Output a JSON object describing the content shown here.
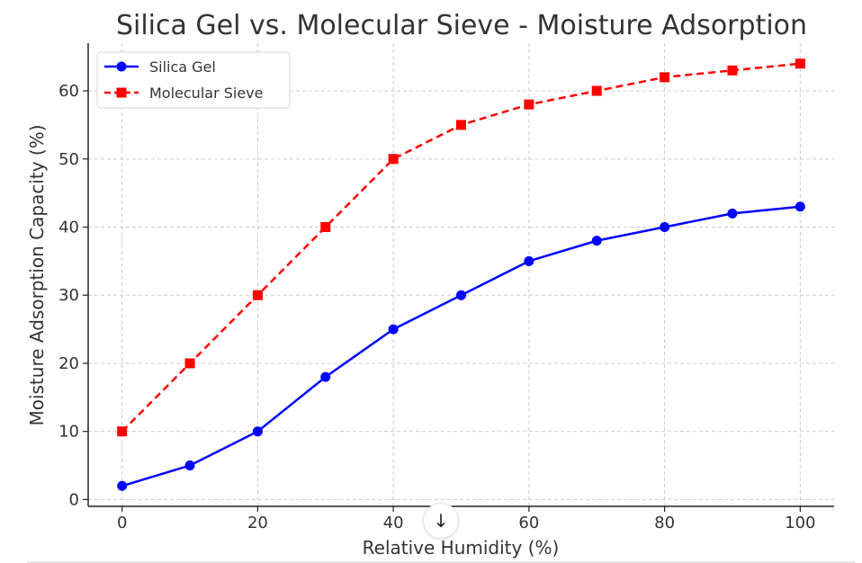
{
  "chart_data": {
    "type": "line",
    "title": "Silica Gel vs. Molecular Sieve - Moisture Adsorption",
    "xlabel": "Relative Humidity (%)",
    "ylabel": "Moisture Adsorption Capacity (%)",
    "x": [
      0,
      10,
      20,
      30,
      40,
      50,
      60,
      70,
      80,
      90,
      100
    ],
    "xlim": [
      -5,
      105
    ],
    "ylim": [
      -1,
      67
    ],
    "xticks": [
      0,
      20,
      40,
      60,
      80,
      100
    ],
    "yticks": [
      0,
      10,
      20,
      30,
      40,
      50,
      60
    ],
    "grid": true,
    "legend_position": "top-left",
    "series": [
      {
        "name": "Silica Gel",
        "values": [
          2,
          5,
          10,
          18,
          25,
          30,
          35,
          38,
          40,
          42,
          43
        ],
        "color": "#0000ff",
        "marker": "circle",
        "linestyle": "solid"
      },
      {
        "name": "Molecular Sieve",
        "values": [
          10,
          20,
          30,
          40,
          50,
          55,
          58,
          60,
          62,
          63,
          64
        ],
        "color": "#ff0000",
        "marker": "square",
        "linestyle": "dashed"
      }
    ]
  },
  "ui": {
    "scroll_button_icon": "arrow-down-icon",
    "scroll_button_glyph": "↓"
  }
}
